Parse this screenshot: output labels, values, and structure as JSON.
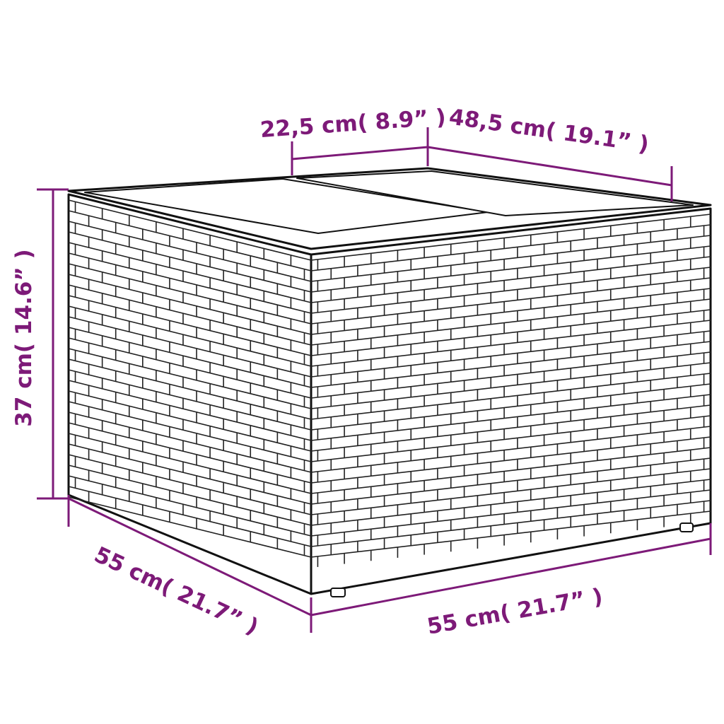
{
  "product": "wicker storage side table with lid",
  "accent_color": "#7d1a78",
  "dimensions": {
    "top_lid_section": "22,5 cm( 8.9” )",
    "top_depth": "48,5 cm( 19.1” )",
    "height": "37 cm( 14.6” )",
    "depth": "55 cm( 21.7” )",
    "width": "55 cm( 21.7” )"
  }
}
